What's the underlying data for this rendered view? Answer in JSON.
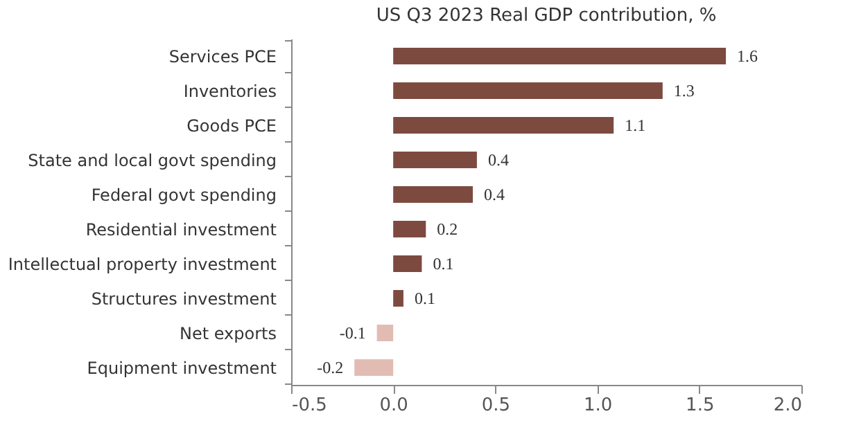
{
  "chart_data": {
    "type": "bar",
    "orientation": "horizontal",
    "title": "US Q3 2023 Real GDP contribution, %",
    "categories": [
      "Services PCE",
      "Inventories",
      "Goods PCE",
      "State and local govt spending",
      "Federal govt spending",
      "Residential investment",
      "Intellectual property investment",
      "Structures investment",
      "Net exports",
      "Equipment investment"
    ],
    "values": [
      1.63,
      1.32,
      1.08,
      0.41,
      0.39,
      0.16,
      0.14,
      0.05,
      -0.08,
      -0.19
    ],
    "value_labels": [
      "1.6",
      "1.3",
      "1.1",
      "0.4",
      "0.4",
      "0.2",
      "0.1",
      "0.1",
      "-0.1",
      "-0.2"
    ],
    "colors": [
      "#7d4a40",
      "#7d4a40",
      "#7d4a40",
      "#7d4a40",
      "#7d4a40",
      "#7d4a40",
      "#7d4a40",
      "#7d4a40",
      "#e2bcb3",
      "#e2bcb3"
    ],
    "xlim": [
      -0.5,
      2.0
    ],
    "xticks": [
      {
        "value": -0.5,
        "label": "-0.5"
      },
      {
        "value": 0,
        "label": "0.0"
      },
      {
        "value": 0.5,
        "label": "0.5"
      },
      {
        "value": 1.0,
        "label": "1.0"
      },
      {
        "value": 1.5,
        "label": "1.5"
      },
      {
        "value": 2.0,
        "label": "2.0"
      }
    ],
    "grid": false
  }
}
